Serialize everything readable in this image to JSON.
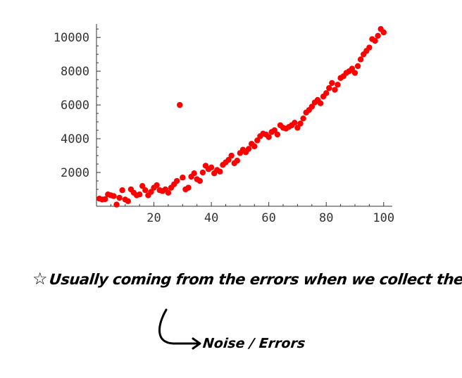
{
  "chart_data": {
    "type": "scatter",
    "title": "",
    "xlabel": "",
    "ylabel": "",
    "xlim": [
      0,
      103
    ],
    "ylim": [
      0,
      10800
    ],
    "x_ticks": [
      20,
      40,
      60,
      80,
      100
    ],
    "y_ticks": [
      2000,
      4000,
      6000,
      8000,
      10000
    ],
    "x_tick_labels": [
      "20",
      "40",
      "60",
      "80",
      "100"
    ],
    "y_tick_labels": [
      "2000",
      "4000",
      "6000",
      "8000",
      "10000"
    ],
    "point_color": "#ff0000",
    "grid": false,
    "legend": "none",
    "series": [
      {
        "x": [
          1,
          2,
          3,
          4,
          5,
          6,
          7,
          8,
          9,
          10,
          11,
          12,
          13,
          14,
          15,
          16,
          17,
          18,
          19,
          20,
          21,
          22,
          23,
          24,
          25,
          26,
          27,
          28,
          29,
          30,
          31,
          32,
          33,
          34,
          35,
          36,
          37,
          38,
          39,
          40,
          41,
          42,
          43,
          44,
          45,
          46,
          47,
          48,
          49,
          50,
          51,
          52,
          53,
          54,
          55,
          56,
          57,
          58,
          59,
          60,
          61,
          62,
          63,
          64,
          65,
          66,
          67,
          68,
          69,
          70,
          71,
          72,
          73,
          74,
          75,
          76,
          77,
          78,
          79,
          80,
          81,
          82,
          83,
          84,
          85,
          86,
          87,
          88,
          89,
          90,
          91,
          92,
          93,
          94,
          95,
          96,
          97,
          98,
          99,
          100
        ],
        "y": [
          450,
          400,
          420,
          700,
          650,
          600,
          100,
          500,
          950,
          400,
          300,
          1000,
          800,
          650,
          700,
          1200,
          950,
          650,
          850,
          1100,
          1250,
          950,
          900,
          1000,
          800,
          1100,
          1300,
          1500,
          6000,
          1700,
          1000,
          1100,
          1750,
          1950,
          1600,
          1500,
          2000,
          2400,
          2200,
          2300,
          1950,
          2150,
          2050,
          2450,
          2600,
          2750,
          3000,
          2550,
          2700,
          3150,
          3350,
          3200,
          3400,
          3700,
          3550,
          3900,
          4150,
          4300,
          4250,
          4100,
          4400,
          4500,
          4250,
          4800,
          4650,
          4600,
          4700,
          4800,
          4950,
          4650,
          4900,
          5200,
          5550,
          5700,
          5900,
          6150,
          6300,
          6100,
          6500,
          6700,
          7000,
          7300,
          6900,
          7200,
          7600,
          7700,
          7900,
          8000,
          8150,
          7900,
          8300,
          8700,
          9000,
          9200,
          9400,
          9900,
          9800,
          10100,
          10500,
          10300
        ]
      }
    ]
  },
  "annotations": {
    "star_icon": "star-icon",
    "main_note": "Usually coming from the errors when we collect the data",
    "arrow_note": "Noise / Errors"
  }
}
